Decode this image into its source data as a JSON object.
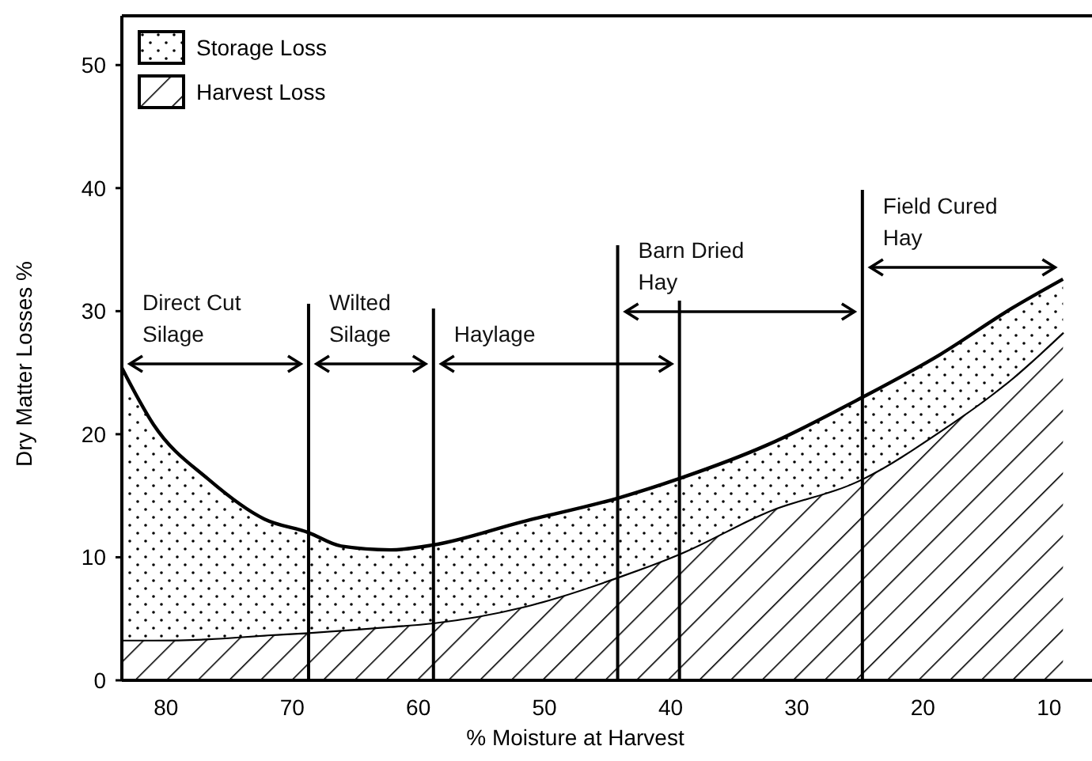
{
  "chart_data": {
    "type": "area",
    "stacked": true,
    "xlabel": "% Moisture at Harvest",
    "ylabel": "Dry Matter Losses %",
    "xlim": [
      83.5,
      6.6
    ],
    "xticks": [
      80,
      70,
      60,
      50,
      40,
      30,
      20,
      10
    ],
    "ylim": [
      0,
      54
    ],
    "yticks": [
      0,
      10,
      20,
      30,
      40,
      50
    ],
    "legend": "top left",
    "grid": false,
    "x": [
      83.5,
      81,
      76.6,
      72.2,
      68.7,
      66.1,
      62.2,
      58.8,
      51.7,
      44.2,
      39.3,
      32.4,
      24.8,
      18.6,
      13,
      8.9
    ],
    "series": [
      {
        "name": "Harvest Loss",
        "color": "#000000",
        "values": [
          3.3,
          3.3,
          3.4,
          3.7,
          3.9,
          4.1,
          4.4,
          4.7,
          6.0,
          8.4,
          10.3,
          13.7,
          16.4,
          20.3,
          24.5,
          28.3
        ]
      },
      {
        "name": "Storage Loss",
        "color": "#000000",
        "values": [
          22.1,
          17.5,
          12.9,
          9.4,
          8.1,
          6.8,
          6.2,
          6.3,
          6.9,
          6.4,
          6.1,
          5.4,
          6.6,
          6.2,
          5.7,
          4.3
        ]
      }
    ],
    "ref_lines": [
      {
        "axis": "x",
        "value": 68.7
      },
      {
        "axis": "x",
        "value": 58.8
      },
      {
        "axis": "x",
        "value": 44.2
      },
      {
        "axis": "x",
        "value": 39.3
      },
      {
        "axis": "x",
        "value": 24.8
      }
    ],
    "annotations": [
      "Direct Cut\nSilage",
      "Wilted\nSilage",
      "Haylage",
      "Barn Dried\nHay",
      "Field Cured\nHay"
    ]
  }
}
